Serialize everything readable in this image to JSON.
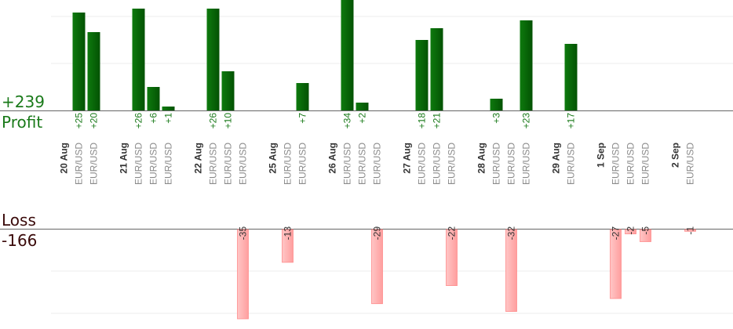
{
  "summary": {
    "profit_total": "+239",
    "profit_label": "Profit",
    "loss_label": "Loss",
    "loss_total": "-166"
  },
  "colors": {
    "profit_bar": "#0a6a0a",
    "profit_text": "#1a7a1a",
    "loss_bar": "#ffb3b3",
    "loss_text": "#333333",
    "date_text": "#333333",
    "pair_text": "#8a8a8a"
  },
  "chart_data": {
    "type": "bar",
    "title": "",
    "xlabel": "",
    "ylabel": "",
    "grid": true,
    "slots": [
      {
        "label": "20 Aug",
        "kind": "date"
      },
      {
        "label": "EUR/USD",
        "kind": "trade",
        "value": 25
      },
      {
        "label": "EUR/USD",
        "kind": "trade",
        "value": 20
      },
      {
        "label": "",
        "kind": "gap"
      },
      {
        "label": "21 Aug",
        "kind": "date"
      },
      {
        "label": "EUR/USD",
        "kind": "trade",
        "value": 26
      },
      {
        "label": "EUR/USD",
        "kind": "trade",
        "value": 6
      },
      {
        "label": "EUR/USD",
        "kind": "trade",
        "value": 1
      },
      {
        "label": "",
        "kind": "gap"
      },
      {
        "label": "22 Aug",
        "kind": "date"
      },
      {
        "label": "EUR/USD",
        "kind": "trade",
        "value": 26
      },
      {
        "label": "EUR/USD",
        "kind": "trade",
        "value": 10
      },
      {
        "label": "EUR/USD",
        "kind": "trade",
        "value": -35
      },
      {
        "label": "",
        "kind": "gap"
      },
      {
        "label": "25 Aug",
        "kind": "date"
      },
      {
        "label": "EUR/USD",
        "kind": "trade",
        "value": -13
      },
      {
        "label": "EUR/USD",
        "kind": "trade",
        "value": 7
      },
      {
        "label": "",
        "kind": "gap"
      },
      {
        "label": "26 Aug",
        "kind": "date"
      },
      {
        "label": "EUR/USD",
        "kind": "trade",
        "value": 34
      },
      {
        "label": "EUR/USD",
        "kind": "trade",
        "value": 2
      },
      {
        "label": "EUR/USD",
        "kind": "trade",
        "value": -29
      },
      {
        "label": "",
        "kind": "gap"
      },
      {
        "label": "27 Aug",
        "kind": "date"
      },
      {
        "label": "EUR/USD",
        "kind": "trade",
        "value": 18
      },
      {
        "label": "EUR/USD",
        "kind": "trade",
        "value": 21
      },
      {
        "label": "EUR/USD",
        "kind": "trade",
        "value": -22
      },
      {
        "label": "",
        "kind": "gap"
      },
      {
        "label": "28 Aug",
        "kind": "date"
      },
      {
        "label": "EUR/USD",
        "kind": "trade",
        "value": 3
      },
      {
        "label": "EUR/USD",
        "kind": "trade",
        "value": -32
      },
      {
        "label": "EUR/USD",
        "kind": "trade",
        "value": 23
      },
      {
        "label": "",
        "kind": "gap"
      },
      {
        "label": "29 Aug",
        "kind": "date"
      },
      {
        "label": "EUR/USD",
        "kind": "trade",
        "value": 17
      },
      {
        "label": "",
        "kind": "gap"
      },
      {
        "label": "1 Sep",
        "kind": "date"
      },
      {
        "label": "EUR/USD",
        "kind": "trade",
        "value": -27
      },
      {
        "label": "EUR/USD",
        "kind": "trade",
        "value": -2
      },
      {
        "label": "EUR/USD",
        "kind": "trade",
        "value": -5
      },
      {
        "label": "",
        "kind": "gap"
      },
      {
        "label": "2 Sep",
        "kind": "date"
      },
      {
        "label": "EUR/USD",
        "kind": "trade",
        "value": -1
      }
    ]
  }
}
